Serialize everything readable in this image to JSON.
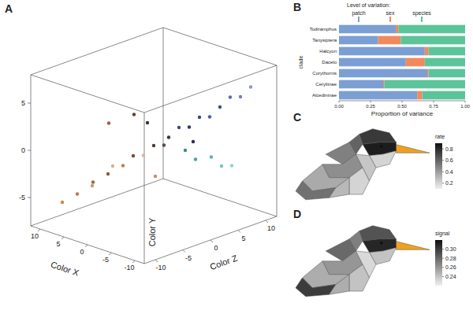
{
  "chart_data": [
    {
      "type": "scatter3d",
      "title": "A",
      "xlabel": "Color X",
      "ylabel": "Color Y",
      "zlabel": "Color Z",
      "xlim": [
        -12,
        12
      ],
      "ylim": [
        -8,
        8
      ],
      "zlim": [
        -12,
        12
      ],
      "xticks": [
        -10,
        -5,
        0,
        5,
        10
      ],
      "yticks": [
        -5,
        0,
        5
      ],
      "zticks": [
        -10,
        -5,
        0,
        5,
        10
      ],
      "series": [
        {
          "x": [
            10,
            8,
            7,
            6,
            5,
            4,
            3,
            2,
            1,
            0,
            -1,
            -2,
            -3,
            -4,
            -5,
            -6,
            -7,
            -8,
            -9,
            -10,
            -2,
            -3,
            -4,
            -5,
            -6,
            6,
            3,
            -1,
            2,
            -6
          ],
          "values": [
            -6,
            -5,
            -4,
            -4,
            -3,
            -2,
            -2,
            -1,
            -1,
            0,
            0,
            1,
            2,
            2,
            3,
            3,
            4,
            5,
            5,
            6,
            -1,
            -2,
            -2,
            -3,
            -3,
            2,
            3,
            3,
            -4,
            1
          ],
          "z": [
            -8,
            -7,
            -5,
            -6,
            -4,
            -4,
            -3,
            -2,
            -1,
            0,
            1,
            1,
            2,
            3,
            4,
            5,
            6,
            7,
            8,
            9,
            4,
            5,
            7,
            8,
            9,
            -3,
            -1,
            -2,
            2,
            2
          ],
          "colors": [
            "#c8884a",
            "#b97a45",
            "#a0683e",
            "#d09a60",
            "#8a5a3a",
            "#e0b080",
            "#b88050",
            "#6b4a38",
            "#d8b898",
            "#4a3a36",
            "#5a4a44",
            "#3c3438",
            "#404a6a",
            "#2e3a60",
            "#384a80",
            "#4a5c98",
            "#3a4c8c",
            "#5a6ea8",
            "#6f82b8",
            "#8a9ac8",
            "#3a8a8a",
            "#4aa0a0",
            "#5ab4b4",
            "#70c4c4",
            "#90d4d0",
            "#a06040",
            "#604030",
            "#3a3040",
            "#c09070",
            "#2a3050"
          ]
        }
      ]
    },
    {
      "type": "bar",
      "title": "B",
      "orientation": "horizontal",
      "stacked": true,
      "xlabel": "Proportion of variance",
      "ylabel": "clade",
      "legend_title": "Level of variation:",
      "categories": [
        "Todiramphus",
        "Tanysiptera",
        "Halcyon",
        "Dacelo",
        "Corythornis",
        "Ceryliinae",
        "Alcedininae"
      ],
      "xlim": [
        0,
        1
      ],
      "xticks": [
        {
          "value": 0,
          "label": "0.00"
        },
        0.25,
        {
          "value": 0.5,
          "label": "0.50"
        },
        0.75,
        {
          "value": 1,
          "label": "1.00"
        }
      ],
      "series": [
        {
          "name": "patch",
          "color": "#7b9fd4",
          "values": [
            0.45,
            0.31,
            0.68,
            0.53,
            0.7,
            0.35,
            0.62
          ]
        },
        {
          "name": "sex",
          "color": "#f08a5d",
          "values": [
            0.02,
            0.18,
            0.03,
            0.15,
            0.01,
            0.01,
            0.04
          ]
        },
        {
          "name": "species",
          "color": "#5cc49a",
          "values": [
            0.53,
            0.51,
            0.29,
            0.32,
            0.29,
            0.64,
            0.34
          ]
        }
      ]
    },
    {
      "type": "patch_map",
      "title": "C",
      "colorbar_label": "rate",
      "values": [
        0.75,
        0.6,
        0.85,
        0.2,
        0.5,
        0.45,
        0.35,
        0.25,
        0.2,
        0.55,
        0.3
      ],
      "color_range": [
        0.1,
        0.9
      ],
      "color_ticks": [
        0.2,
        0.4,
        0.6,
        0.8
      ]
    },
    {
      "type": "patch_map",
      "title": "D",
      "colorbar_label": "signal",
      "values": [
        0.29,
        0.27,
        0.31,
        0.24,
        0.28,
        0.26,
        0.25,
        0.23,
        0.24,
        0.3,
        0.25
      ],
      "color_range": [
        0.22,
        0.32
      ],
      "color_ticks": [
        0.24,
        0.26,
        0.28,
        {
          "value": 0.3,
          "label": "0.30"
        }
      ]
    }
  ]
}
